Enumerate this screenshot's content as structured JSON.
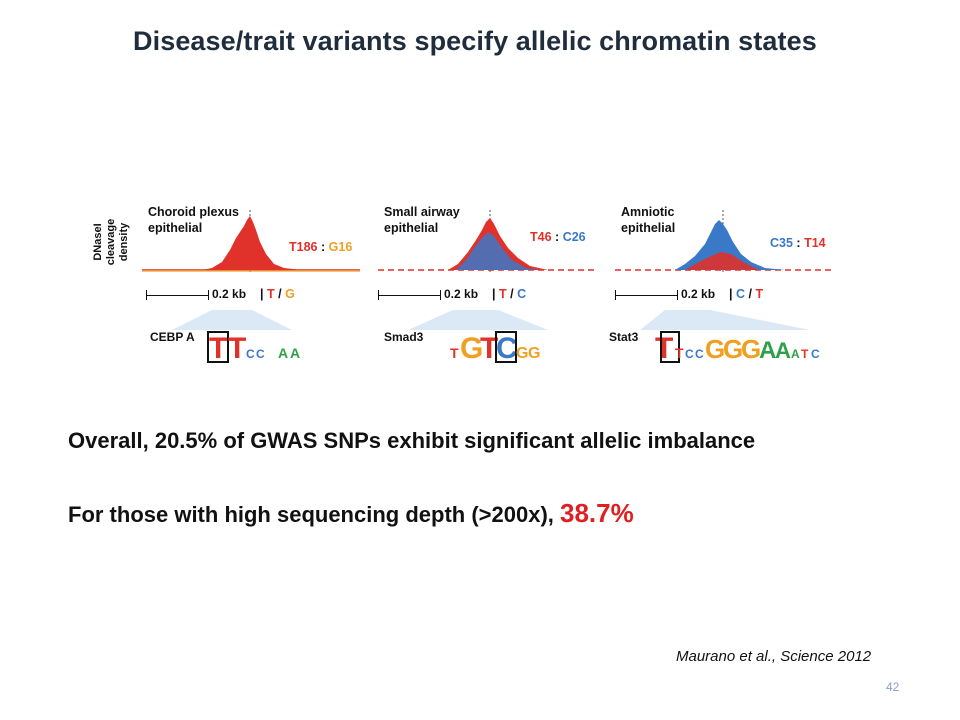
{
  "slide": {
    "title": "Disease/trait variants specify allelic chromatin states",
    "y_axis_label_line1": "DNaseI",
    "y_axis_label_line2": "cleavage density",
    "panels": [
      {
        "label_line1": "Choroid plexus",
        "label_line2": "epithelial",
        "ratio_a": "T186",
        "ratio_sep": ":",
        "ratio_b": "G16",
        "scale": "0.2 kb",
        "allele_a": "T",
        "allele_sep": "/",
        "allele_b": "G",
        "motif": "CEBP A"
      },
      {
        "label_line1": "Small airway",
        "label_line2": "epithelial",
        "ratio_a": "T46",
        "ratio_sep": ":",
        "ratio_b": "C26",
        "scale": "0.2 kb",
        "allele_a": "T",
        "allele_sep": "/",
        "allele_b": "C",
        "motif": "Smad3"
      },
      {
        "label_line1": "Amniotic",
        "label_line2": "epithelial",
        "ratio_a": "C35",
        "ratio_sep": ":",
        "ratio_b": "T14",
        "scale": "0.2 kb",
        "allele_a": "C",
        "allele_sep": "/",
        "allele_b": "T",
        "motif": "Stat3"
      }
    ],
    "line1": "Overall, 20.5% of GWAS SNPs exhibit significant allelic imbalance",
    "line2_prefix": "For those with high sequencing depth (>200x),",
    "line2_highlight": "38.7%",
    "citation": "Maurano et al., Science 2012",
    "page_number": "42",
    "colors": {
      "red": "#e0312a",
      "blue": "#3a78c8",
      "orange": "#f0a020",
      "title": "#1f2d3d"
    }
  }
}
